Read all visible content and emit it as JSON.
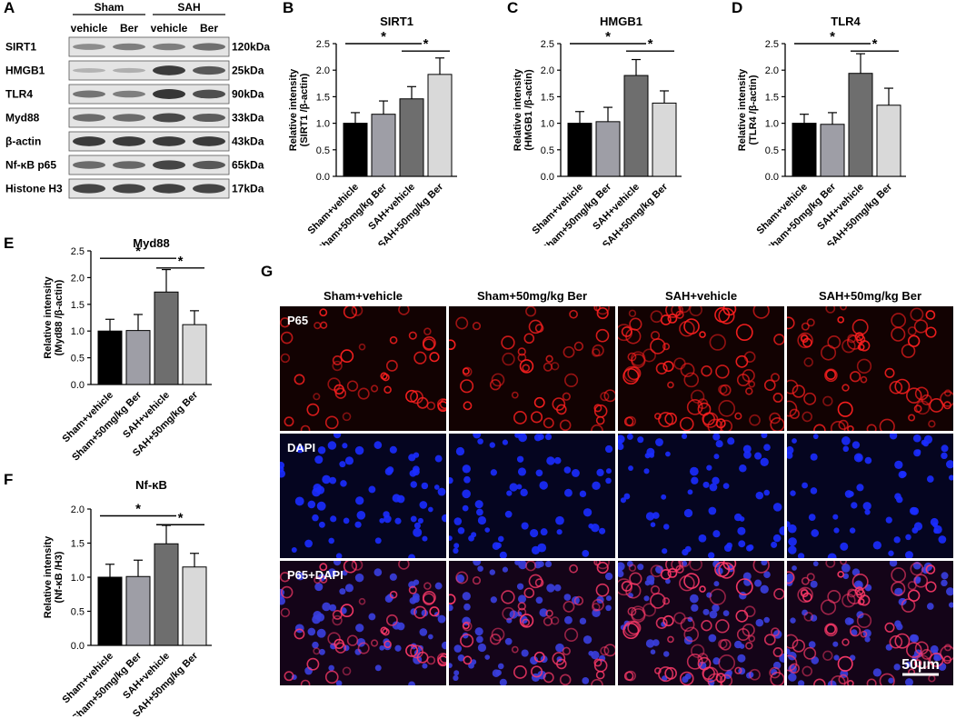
{
  "panel_letters": {
    "a": "A",
    "b": "B",
    "c": "C",
    "d": "D",
    "e": "E",
    "f": "F",
    "g": "G"
  },
  "blot": {
    "group_headers": [
      "Sham",
      "SAH"
    ],
    "lane_labels": [
      "vehicle",
      "Ber",
      "vehicle",
      "Ber"
    ],
    "rows": [
      {
        "protein": "SIRT1",
        "size": "120kDa",
        "intensities": [
          0.42,
          0.5,
          0.5,
          0.58
        ]
      },
      {
        "protein": "HMGB1",
        "size": "25kDa",
        "intensities": [
          0.22,
          0.24,
          0.85,
          0.7
        ]
      },
      {
        "protein": "TLR4",
        "size": "90kDa",
        "intensities": [
          0.55,
          0.5,
          0.88,
          0.75
        ]
      },
      {
        "protein": "Myd88",
        "size": "33kDa",
        "intensities": [
          0.6,
          0.6,
          0.78,
          0.68
        ]
      },
      {
        "protein": "β-actin",
        "size": "43kDa",
        "intensities": [
          0.85,
          0.85,
          0.85,
          0.85
        ]
      },
      {
        "protein": "Nf-κB p65",
        "size": "65kDa",
        "intensities": [
          0.6,
          0.62,
          0.8,
          0.7
        ]
      },
      {
        "protein": "Histone H3",
        "size": "17kDa",
        "intensities": [
          0.8,
          0.8,
          0.82,
          0.8
        ]
      }
    ]
  },
  "chart_data": [
    {
      "id": "B",
      "type": "bar",
      "title": "SIRT1",
      "ylabel": [
        "Relative intensity",
        "(SIRT1 /β-actin)"
      ],
      "categories": [
        "Sham+vehicle",
        "Sham+50mg/kg Ber",
        "SAH+vehicle",
        "SAH+50mg/kg Ber"
      ],
      "values": [
        1.0,
        1.17,
        1.46,
        1.92
      ],
      "errors": [
        0.2,
        0.25,
        0.23,
        0.31
      ],
      "colors": [
        "#000000",
        "#9e9ea6",
        "#6e6e6e",
        "#d9d9d9"
      ],
      "ylim": [
        0,
        2.5
      ],
      "yticks": [
        "0.0",
        "0.5",
        "1.0",
        "1.5",
        "2.0",
        "2.5"
      ],
      "significance": [
        {
          "from": 0,
          "to": 2,
          "label": "*",
          "level": 2.5
        },
        {
          "from": 2,
          "to": 3,
          "label": "*",
          "level": 2.36
        }
      ]
    },
    {
      "id": "C",
      "type": "bar",
      "title": "HMGB1",
      "ylabel": [
        "Relative intensity",
        "(HMGB1 /β-actin)"
      ],
      "categories": [
        "Sham+vehicle",
        "Sham+50mg/kg Ber",
        "SAH+vehicle",
        "SAH+50mg/kg Ber"
      ],
      "values": [
        1.0,
        1.03,
        1.9,
        1.38
      ],
      "errors": [
        0.22,
        0.27,
        0.3,
        0.23
      ],
      "colors": [
        "#000000",
        "#9e9ea6",
        "#6e6e6e",
        "#d9d9d9"
      ],
      "ylim": [
        0,
        2.5
      ],
      "yticks": [
        "0.0",
        "0.5",
        "1.0",
        "1.5",
        "2.0",
        "2.5"
      ],
      "significance": [
        {
          "from": 0,
          "to": 2,
          "label": "*",
          "level": 2.5
        },
        {
          "from": 2,
          "to": 3,
          "label": "*",
          "level": 2.36
        }
      ]
    },
    {
      "id": "D",
      "type": "bar",
      "title": "TLR4",
      "ylabel": [
        "Relative intensity",
        "(TLR4 /β-actin)"
      ],
      "categories": [
        "Sham+vehicle",
        "Sham+50mg/kg Ber",
        "SAH+vehicle",
        "SAH+50mg/kg Ber"
      ],
      "values": [
        1.0,
        0.98,
        1.94,
        1.34
      ],
      "errors": [
        0.17,
        0.22,
        0.37,
        0.32
      ],
      "colors": [
        "#000000",
        "#9e9ea6",
        "#6e6e6e",
        "#d9d9d9"
      ],
      "ylim": [
        0,
        2.5
      ],
      "yticks": [
        "0.0",
        "0.5",
        "1.0",
        "1.5",
        "2.0",
        "2.5"
      ],
      "significance": [
        {
          "from": 0,
          "to": 2,
          "label": "*",
          "level": 2.5
        },
        {
          "from": 2,
          "to": 3,
          "label": "*",
          "level": 2.36
        }
      ]
    },
    {
      "id": "E",
      "type": "bar",
      "title": "Myd88",
      "ylabel": [
        "Relative intensity",
        "(Myd88 /β-actin)"
      ],
      "categories": [
        "Sham+vehicle",
        "Sham+50mg/kg Ber",
        "SAH+vehicle",
        "SAH+50mg/kg Ber"
      ],
      "values": [
        1.0,
        1.01,
        1.73,
        1.12
      ],
      "errors": [
        0.22,
        0.3,
        0.42,
        0.26
      ],
      "colors": [
        "#000000",
        "#9e9ea6",
        "#6e6e6e",
        "#d9d9d9"
      ],
      "ylim": [
        0,
        2.5
      ],
      "yticks": [
        "0.0",
        "0.5",
        "1.0",
        "1.5",
        "2.0",
        "2.5"
      ],
      "significance": [
        {
          "from": 0,
          "to": 2,
          "label": "*",
          "level": 2.36
        },
        {
          "from": 2,
          "to": 3,
          "label": "*",
          "level": 2.18
        }
      ]
    },
    {
      "id": "F",
      "type": "bar",
      "title": "Nf-κB",
      "ylabel": [
        "Relative intensity",
        "(Nf-κB /H3)"
      ],
      "categories": [
        "Sham+vehicle",
        "Sham+50mg/kg Ber",
        "SAH+vehicle",
        "SAH+50mg/kg Ber"
      ],
      "values": [
        1.0,
        1.01,
        1.49,
        1.15
      ],
      "errors": [
        0.19,
        0.24,
        0.27,
        0.2
      ],
      "colors": [
        "#000000",
        "#9e9ea6",
        "#6e6e6e",
        "#d9d9d9"
      ],
      "ylim": [
        0,
        2.0
      ],
      "yticks": [
        "0.0",
        "0.5",
        "1.0",
        "1.5",
        "2.0"
      ],
      "significance": [
        {
          "from": 0,
          "to": 2,
          "label": "*",
          "level": 1.9
        },
        {
          "from": 2,
          "to": 3,
          "label": "*",
          "level": 1.77
        }
      ]
    }
  ],
  "micrograph": {
    "column_headers": [
      "Sham+vehicle",
      "Sham+50mg/kg Ber",
      "SAH+vehicle",
      "SAH+50mg/kg Ber"
    ],
    "row_labels": [
      "P65",
      "DAPI",
      "P65+DAPI"
    ],
    "scale_bar": "50μm",
    "red_density": [
      0.45,
      0.5,
      0.95,
      0.8
    ],
    "blue_density": [
      0.6,
      0.6,
      0.55,
      0.65
    ]
  }
}
